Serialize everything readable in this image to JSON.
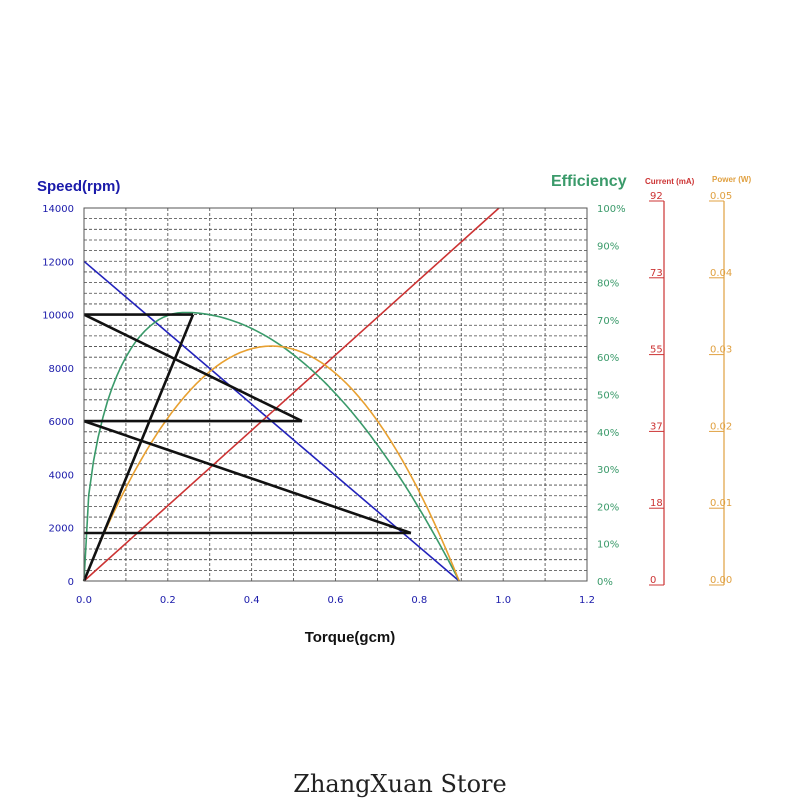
{
  "chart_data": {
    "type": "line",
    "x_axis": {
      "label": "Torque(gcm)",
      "range": [
        0,
        1.2
      ],
      "ticks": [
        "0.0",
        "0.2",
        "0.4",
        "0.6",
        "0.8",
        "1.0",
        "1.2"
      ]
    },
    "speed_axis": {
      "label": "Speed(rpm)",
      "range": [
        0,
        14000
      ],
      "ticks": [
        "0",
        "2000",
        "4000",
        "6000",
        "8000",
        "10000",
        "12000",
        "14000"
      ],
      "color": "#1a1aaa"
    },
    "efficiency_axis": {
      "label": "Efficiency",
      "range": [
        0,
        100
      ],
      "ticks": [
        "0%",
        "10%",
        "20%",
        "30%",
        "40%",
        "50%",
        "60%",
        "70%",
        "80%",
        "90%",
        "100%"
      ],
      "color": "#3a9a6a"
    },
    "current_axis": {
      "label": "Current (mA)",
      "range": [
        0,
        92
      ],
      "ticks": [
        "0",
        "18",
        "37",
        "55",
        "73",
        "92"
      ],
      "color": "#cc3333"
    },
    "power_axis": {
      "label": "Power (W)",
      "range": [
        0,
        0.05
      ],
      "ticks": [
        "0.00",
        "0.01",
        "0.02",
        "0.03",
        "0.04",
        "0.05"
      ],
      "color": "#e0a040"
    },
    "series": [
      {
        "color": "#2222bb",
        "axis": "speed",
        "x": [
          0,
          0.895
        ],
        "y": [
          12000,
          0
        ]
      },
      {
        "color": "#cc3333",
        "axis": "current",
        "x": [
          0,
          0.99
        ],
        "y": [
          0,
          92
        ]
      },
      {
        "color": "#3a9a6a",
        "axis": "efficiency",
        "curve": "efficiency",
        "x_max": 0.895,
        "x_peak": 0.24,
        "peak": 72
      },
      {
        "color": "#e8a030",
        "axis": "power",
        "curve": "parabola",
        "x_max": 0.895,
        "peak": 0.0315
      },
      {
        "color": "#111111",
        "axis": "speed",
        "x": [
          0,
          0.26
        ],
        "y": [
          0,
          10000
        ]
      },
      {
        "color": "#111111",
        "axis": "speed",
        "x": [
          0,
          0.26
        ],
        "y": [
          10000,
          10000
        ]
      },
      {
        "color": "#111111",
        "axis": "speed",
        "x": [
          0,
          0.52
        ],
        "y": [
          10000,
          6000
        ]
      },
      {
        "color": "#111111",
        "axis": "speed",
        "x": [
          0,
          0.52
        ],
        "y": [
          6000,
          6000
        ]
      },
      {
        "color": "#111111",
        "axis": "speed",
        "x": [
          0,
          0.78
        ],
        "y": [
          6000,
          1800
        ]
      },
      {
        "color": "#111111",
        "axis": "speed",
        "x": [
          0,
          0.78
        ],
        "y": [
          1800,
          1800
        ]
      }
    ],
    "grid": true
  },
  "footer": "ZhangXuan Store"
}
